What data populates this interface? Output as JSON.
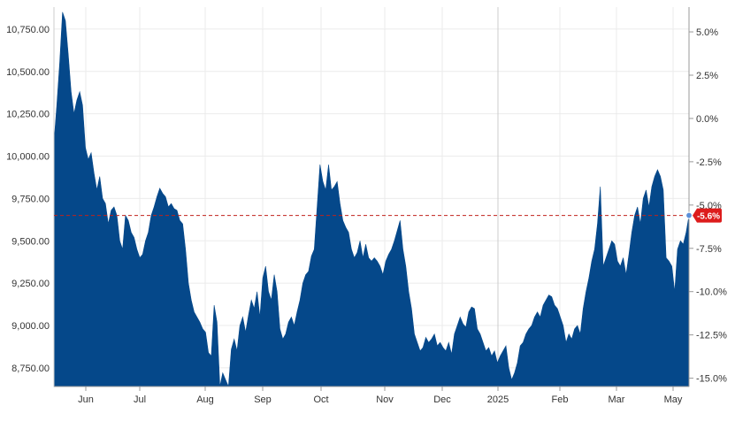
{
  "chart_data": {
    "type": "area",
    "x_tick_labels": [
      "Jun",
      "Jul",
      "Aug",
      "Sep",
      "Oct",
      "Nov",
      "Dec",
      "2025",
      "Feb",
      "Mar",
      "May"
    ],
    "y_left_ticks": [
      {
        "value": 10750,
        "label": "10,750.00"
      },
      {
        "value": 10500,
        "label": "10,500.00"
      },
      {
        "value": 10250,
        "label": "10,250.00"
      },
      {
        "value": 10000,
        "label": "10,000.00"
      },
      {
        "value": 9750,
        "label": "9,750.00"
      },
      {
        "value": 9500,
        "label": "9,500.00"
      },
      {
        "value": 9250,
        "label": "9,250.00"
      },
      {
        "value": 9000,
        "label": "9,000.00"
      },
      {
        "value": 8750,
        "label": "8,750.00"
      }
    ],
    "y_right_ticks": [
      {
        "value": 5.0,
        "label": "5.0%"
      },
      {
        "value": 2.5,
        "label": "2.5%"
      },
      {
        "value": 0.0,
        "label": "0.0%"
      },
      {
        "value": -2.5,
        "label": "-2.5%"
      },
      {
        "value": -5.0,
        "label": "-5.0%"
      },
      {
        "value": -7.5,
        "label": "-7.5%"
      },
      {
        "value": -10.0,
        "label": "-10.0%"
      },
      {
        "value": -12.5,
        "label": "-12.5%"
      },
      {
        "value": -15.0,
        "label": "-15.0%"
      }
    ],
    "ylim": [
      8640,
      10880
    ],
    "reference_value": 9650,
    "current_change_label": "-5.6%",
    "x_start_month_index": 0,
    "series": [
      {
        "values": [
          10080,
          10300,
          10550,
          10850,
          10800,
          10600,
          10380,
          10250,
          10330,
          10380,
          10300,
          10050,
          9980,
          10020,
          9900,
          9800,
          9880,
          9750,
          9720,
          9600,
          9680,
          9700,
          9650,
          9500,
          9450,
          9650,
          9620,
          9550,
          9520,
          9450,
          9400,
          9420,
          9500,
          9550,
          9650,
          9700,
          9760,
          9810,
          9780,
          9760,
          9700,
          9720,
          9690,
          9680,
          9620,
          9600,
          9450,
          9250,
          9150,
          9080,
          9050,
          9020,
          8980,
          8960,
          8840,
          8820,
          9120,
          9020,
          8640,
          8720,
          8680,
          8640,
          8860,
          8920,
          8850,
          9000,
          9050,
          8960,
          9060,
          9150,
          9100,
          9200,
          9050,
          9280,
          9350,
          9200,
          9150,
          9300,
          9200,
          8980,
          8920,
          8950,
          9020,
          9050,
          9000,
          9080,
          9150,
          9250,
          9300,
          9320,
          9410,
          9450,
          9700,
          9950,
          9850,
          9800,
          9950,
          9800,
          9820,
          9850,
          9720,
          9620,
          9580,
          9550,
          9450,
          9400,
          9430,
          9500,
          9400,
          9480,
          9400,
          9380,
          9400,
          9380,
          9350,
          9300,
          9380,
          9420,
          9450,
          9500,
          9560,
          9620,
          9450,
          9350,
          9200,
          9100,
          8950,
          8900,
          8850,
          8870,
          8930,
          8900,
          8920,
          8950,
          8880,
          8900,
          8870,
          8850,
          8900,
          8830,
          8950,
          9000,
          9050,
          9010,
          8990,
          9080,
          9110,
          9100,
          8980,
          8950,
          8900,
          8850,
          8870,
          8820,
          8850,
          8780,
          8820,
          8850,
          8880,
          8750,
          8680,
          8720,
          8780,
          8880,
          8900,
          8950,
          8980,
          9000,
          9050,
          9080,
          9050,
          9120,
          9150,
          9180,
          9170,
          9120,
          9100,
          9050,
          9000,
          8900,
          8950,
          8920,
          8980,
          9000,
          8950,
          9100,
          9200,
          9280,
          9380,
          9450,
          9600,
          9820,
          9350,
          9400,
          9450,
          9500,
          9480,
          9380,
          9350,
          9400,
          9300,
          9420,
          9550,
          9650,
          9700,
          9600,
          9750,
          9800,
          9700,
          9820,
          9880,
          9920,
          9880,
          9800,
          9400,
          9380,
          9350,
          9200,
          9450,
          9500,
          9480,
          9550,
          9650
        ]
      }
    ],
    "colors": {
      "area_fill": "#05488a",
      "reference_line": "#c0221b",
      "badge_fill": "#dd1c1c",
      "badge_text": "#ffffff",
      "marker_fill": "#5b8fd9",
      "grid": "#ebebeb",
      "axis": "#999999"
    }
  }
}
